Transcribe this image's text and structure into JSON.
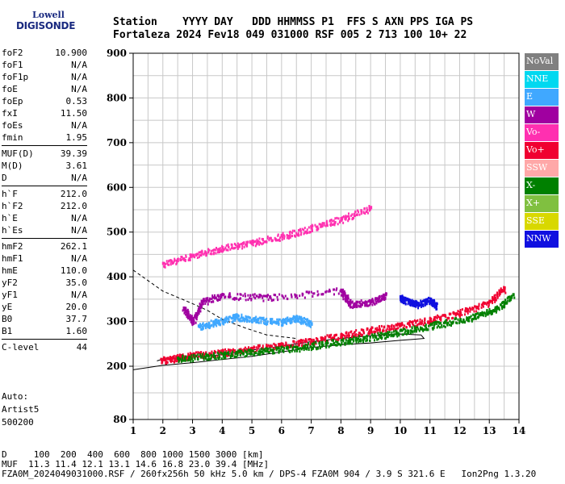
{
  "logo": {
    "line1": "Lowell",
    "line2": "DIGISONDE"
  },
  "header": {
    "labels": "Station    YYYY DAY   DDD HHMMSS P1  FFS S AXN PPS IGA PS",
    "values": "Fortaleza 2024 Fev18 049 031000 RSF 005 2 713 100 10+ 22"
  },
  "params": {
    "group1": [
      {
        "name": "foF2",
        "value": "10.900"
      },
      {
        "name": "foF1",
        "value": "N/A"
      },
      {
        "name": "foF1p",
        "value": "N/A"
      },
      {
        "name": "foE",
        "value": "N/A"
      },
      {
        "name": "foEp",
        "value": "0.53"
      },
      {
        "name": "fxI",
        "value": "11.50"
      },
      {
        "name": "foEs",
        "value": "N/A"
      },
      {
        "name": "fmin",
        "value": "1.95"
      }
    ],
    "group2": [
      {
        "name": "MUF(D)",
        "value": "39.39"
      },
      {
        "name": "M(D)",
        "value": "3.61"
      },
      {
        "name": "D",
        "value": "N/A"
      }
    ],
    "group3": [
      {
        "name": "h`F",
        "value": "212.0"
      },
      {
        "name": "h`F2",
        "value": "212.0"
      },
      {
        "name": "h`E",
        "value": "N/A"
      },
      {
        "name": "h`Es",
        "value": "N/A"
      }
    ],
    "group4": [
      {
        "name": "hmF2",
        "value": "262.1"
      },
      {
        "name": "hmF1",
        "value": "N/A"
      },
      {
        "name": "hmE",
        "value": "110.0"
      },
      {
        "name": "yF2",
        "value": "35.0"
      },
      {
        "name": "yF1",
        "value": "N/A"
      },
      {
        "name": "yE",
        "value": "20.0"
      },
      {
        "name": "B0",
        "value": "37.7"
      },
      {
        "name": "B1",
        "value": "1.60"
      }
    ],
    "group5": [
      {
        "name": "C-level",
        "value": "44"
      }
    ]
  },
  "auto": {
    "line1": "Auto:",
    "line2": "Artist5",
    "line3": "500200"
  },
  "legend": [
    {
      "label": "NoVal",
      "color": "#808080"
    },
    {
      "label": "NNE",
      "color": "#00d8f0"
    },
    {
      "label": "E",
      "color": "#40a8ff"
    },
    {
      "label": "W",
      "color": "#a000a0"
    },
    {
      "label": "Vo-",
      "color": "#ff30b0"
    },
    {
      "label": "Vo+",
      "color": "#f00030"
    },
    {
      "label": "SSW",
      "color": "#ffa8a8"
    },
    {
      "label": "X-",
      "color": "#008000"
    },
    {
      "label": "X+",
      "color": "#80c040"
    },
    {
      "label": "SSE",
      "color": "#d8d800"
    },
    {
      "label": "NNW",
      "color": "#1010e0"
    }
  ],
  "bottom": {
    "line1": "D     100  200  400  600  800 1000 1500 3000 [km]",
    "line2": "MUF  11.3 11.4 12.1 13.1 14.6 16.8 23.0 39.4 [MHz]",
    "line3": "FZA0M_2024049031000.RSF / 260fx256h 50 kHz 5.0 km / DPS-4 FZA0M 904 / 3.9 S 321.6 E   Ion2Png 1.3.20"
  },
  "chart_data": {
    "type": "scatter",
    "x_ticks": [
      1,
      2,
      3,
      4,
      5,
      6,
      7,
      8,
      9,
      10,
      11,
      12,
      13,
      14
    ],
    "y_ticks": [
      80,
      200,
      300,
      400,
      500,
      600,
      700,
      800,
      900
    ],
    "xlim": [
      1,
      14
    ],
    "ylim": [
      80,
      900
    ],
    "grid": true,
    "traces": [
      {
        "name": "F2-O",
        "color": "#f00030",
        "points": [
          [
            1.95,
            215
          ],
          [
            2.5,
            220
          ],
          [
            3,
            226
          ],
          [
            4,
            232
          ],
          [
            5,
            240
          ],
          [
            6,
            248
          ],
          [
            7,
            258
          ],
          [
            8,
            270
          ],
          [
            9,
            282
          ],
          [
            10,
            292
          ],
          [
            11,
            305
          ],
          [
            12,
            320
          ],
          [
            13,
            345
          ],
          [
            13.5,
            375
          ]
        ]
      },
      {
        "name": "F2-X",
        "color": "#008000",
        "points": [
          [
            2.5,
            218
          ],
          [
            3.5,
            224
          ],
          [
            4.5,
            230
          ],
          [
            5.5,
            236
          ],
          [
            6.5,
            242
          ],
          [
            7.5,
            252
          ],
          [
            8.5,
            262
          ],
          [
            9.5,
            272
          ],
          [
            10.5,
            285
          ],
          [
            11.5,
            298
          ],
          [
            12.5,
            312
          ],
          [
            13.2,
            330
          ],
          [
            13.8,
            360
          ]
        ]
      },
      {
        "name": "F2-2hop",
        "color": "#ff30b0",
        "points": [
          [
            2,
            430
          ],
          [
            3,
            448
          ],
          [
            4,
            465
          ],
          [
            5,
            478
          ],
          [
            6,
            492
          ],
          [
            7,
            510
          ],
          [
            8,
            530
          ],
          [
            9,
            555
          ]
        ]
      },
      {
        "name": "E-echoes",
        "color": "#40a8ff",
        "points": [
          [
            3.2,
            290
          ],
          [
            3.8,
            300
          ],
          [
            4.5,
            312
          ],
          [
            5.2,
            305
          ],
          [
            6,
            300
          ],
          [
            6.5,
            310
          ],
          [
            7,
            295
          ]
        ]
      },
      {
        "name": "W-echoes",
        "color": "#a000a0",
        "points": [
          [
            2.7,
            330
          ],
          [
            3,
            300
          ],
          [
            3.3,
            345
          ],
          [
            4,
            360
          ],
          [
            5.6,
            355
          ],
          [
            8,
            370
          ],
          [
            8.3,
            340
          ],
          [
            9,
            345
          ],
          [
            9.5,
            360
          ]
        ]
      },
      {
        "name": "NNW-echoes",
        "color": "#1010e0",
        "points": [
          [
            10,
            355
          ],
          [
            10.3,
            345
          ],
          [
            10.6,
            340
          ],
          [
            11,
            350
          ],
          [
            11.2,
            335
          ]
        ]
      }
    ],
    "profile_dashed": [
      [
        1,
        415
      ],
      [
        2,
        368
      ],
      [
        3,
        340
      ],
      [
        3.5,
        325
      ],
      [
        4,
        305
      ],
      [
        4.8,
        285
      ],
      [
        5.5,
        270
      ],
      [
        6.5,
        262
      ]
    ],
    "profile_solid": [
      [
        1,
        192
      ],
      [
        2,
        202
      ],
      [
        3,
        208
      ],
      [
        4,
        215
      ],
      [
        5,
        222
      ],
      [
        6,
        232
      ],
      [
        7,
        242
      ],
      [
        8,
        248
      ],
      [
        9,
        252
      ],
      [
        10,
        258
      ],
      [
        10.8,
        262
      ],
      [
        10.7,
        270
      ],
      [
        10,
        272
      ],
      [
        9,
        268
      ],
      [
        8,
        262
      ],
      [
        7,
        255
      ],
      [
        6,
        245
      ],
      [
        5,
        236
      ],
      [
        4,
        226
      ],
      [
        3,
        220
      ],
      [
        2,
        216
      ],
      [
        1.8,
        212
      ]
    ]
  }
}
